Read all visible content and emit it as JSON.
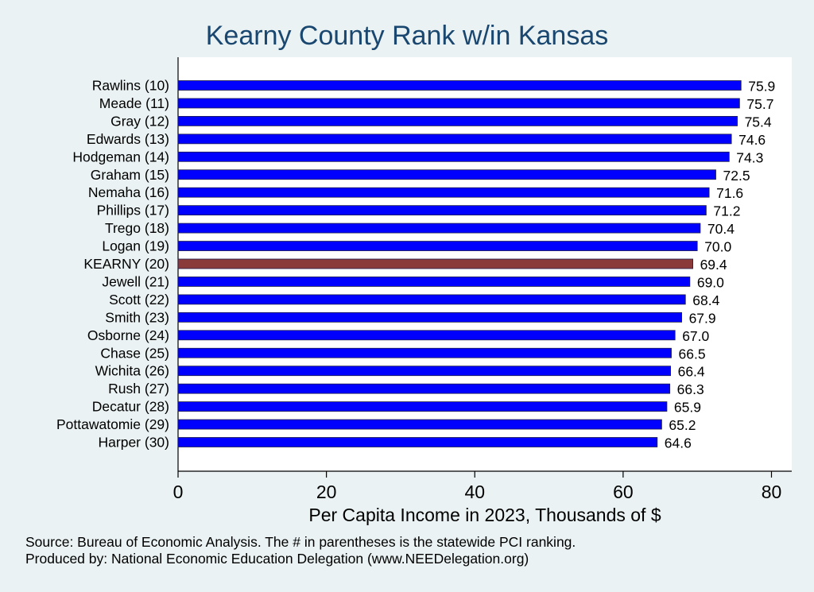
{
  "title": "Kearny County Rank w/in Kansas",
  "notes": [
    "Source: Bureau of Economic Analysis. The # in parentheses is the statewide PCI ranking.",
    "Produced by: National Economic Education Delegation (www.NEEDelegation.org)"
  ],
  "colors": {
    "background": "#eaf2f3",
    "plot_background": "#ffffff",
    "bar_default": "#0000ff",
    "bar_highlight": "#8b3a3a",
    "title": "#1a476f"
  },
  "chart_data": {
    "type": "bar",
    "orientation": "horizontal",
    "title": "Kearny County Rank w/in Kansas",
    "xlabel": "Per Capita Income in 2023, Thousands of $",
    "ylabel": "",
    "xlim": [
      0,
      80
    ],
    "xticks": [
      0,
      20,
      40,
      60,
      80
    ],
    "highlight": "KEARNY (20)",
    "categories": [
      "Rawlins (10)",
      "Meade (11)",
      "Gray (12)",
      "Edwards (13)",
      "Hodgeman (14)",
      "Graham (15)",
      "Nemaha (16)",
      "Phillips (17)",
      "Trego (18)",
      "Logan (19)",
      "KEARNY (20)",
      "Jewell (21)",
      "Scott (22)",
      "Smith (23)",
      "Osborne (24)",
      "Chase (25)",
      "Wichita (26)",
      "Rush (27)",
      "Decatur (28)",
      "Pottawatomie (29)",
      "Harper (30)"
    ],
    "values": [
      75.9,
      75.7,
      75.4,
      74.6,
      74.3,
      72.5,
      71.6,
      71.2,
      70.4,
      70.0,
      69.4,
      69.0,
      68.4,
      67.9,
      67.0,
      66.5,
      66.4,
      66.3,
      65.9,
      65.2,
      64.6
    ],
    "value_labels": [
      "75.9",
      "75.7",
      "75.4",
      "74.6",
      "74.3",
      "72.5",
      "71.6",
      "71.2",
      "70.4",
      "70.0",
      "69.4",
      "69.0",
      "68.4",
      "67.9",
      "67.0",
      "66.5",
      "66.4",
      "66.3",
      "65.9",
      "65.2",
      "64.6"
    ],
    "grid": false,
    "legend": "none"
  }
}
